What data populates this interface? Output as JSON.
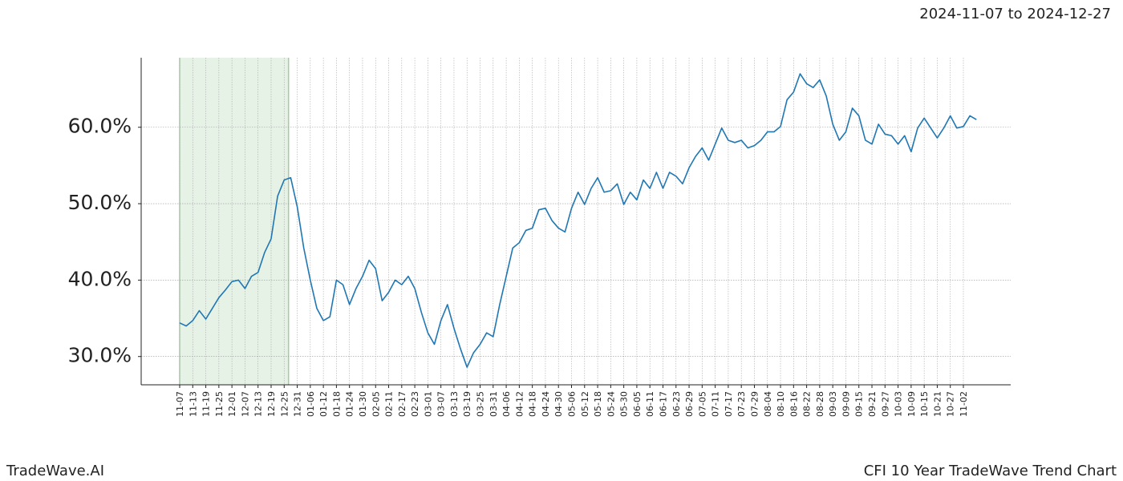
{
  "chart_data": {
    "type": "line",
    "subtitle": "2024-11-07 to 2024-12-27",
    "footer_left": "TradeWave.AI",
    "footer_right": "CFI 10 Year TradeWave Trend Chart",
    "highlight": [
      "2024-11-07",
      "2024-12-27"
    ],
    "highlight_color": "#e6f2e6",
    "grid": true,
    "categories": [
      "11-07",
      null,
      "11-13",
      null,
      "11-19",
      null,
      "11-25",
      null,
      "12-01",
      null,
      "12-07",
      null,
      "12-13",
      null,
      "12-19",
      null,
      "12-25",
      null,
      "12-31",
      null,
      "01-06",
      null,
      "01-12",
      null,
      "01-18",
      null,
      "01-24",
      null,
      "01-30",
      null,
      "02-05",
      null,
      "02-11",
      null,
      "02-17",
      null,
      "02-23",
      null,
      "03-01",
      null,
      "03-07",
      null,
      "03-13",
      null,
      "03-19",
      null,
      "03-25",
      null,
      "03-31",
      null,
      "04-06",
      null,
      "04-12",
      null,
      "04-18",
      null,
      "04-24",
      null,
      "04-30",
      null,
      "05-06",
      null,
      "05-12",
      null,
      "05-18",
      null,
      "05-24",
      null,
      "05-30",
      null,
      "06-05",
      null,
      "06-11",
      null,
      "06-17",
      null,
      "06-23",
      null,
      "06-29",
      null,
      "07-05",
      null,
      "07-11",
      null,
      "07-17",
      null,
      "07-23",
      null,
      "07-29",
      null,
      "08-04",
      null,
      "08-10",
      null,
      "08-16",
      null,
      "08-22",
      null,
      "08-28",
      null,
      "09-03",
      null,
      "09-09",
      null,
      "09-15",
      null,
      "09-21",
      null,
      "09-27",
      null,
      "10-03",
      null,
      "10-09",
      null,
      "10-15",
      null,
      "10-21",
      null,
      "10-27",
      null,
      "11-02",
      null,
      null
    ],
    "series": [
      {
        "name": "CFI",
        "color": "#1f77b4",
        "values": [
          34.4,
          34.0,
          34.7,
          36.0,
          34.9,
          36.3,
          37.7,
          38.7,
          39.8,
          40.0,
          38.9,
          40.5,
          41.0,
          43.6,
          45.4,
          51.0,
          53.1,
          53.4,
          49.6,
          44.2,
          40.0,
          36.3,
          34.7,
          35.2,
          40.0,
          39.4,
          36.8,
          38.9,
          40.5,
          42.6,
          41.5,
          37.3,
          38.4,
          40.0,
          39.4,
          40.5,
          38.9,
          35.8,
          33.1,
          31.6,
          34.7,
          36.8,
          33.7,
          31.0,
          28.6,
          30.5,
          31.6,
          33.1,
          32.6,
          36.8,
          40.5,
          44.2,
          44.9,
          46.5,
          46.8,
          49.2,
          49.4,
          47.8,
          46.8,
          46.3,
          49.4,
          51.5,
          49.9,
          52.0,
          53.4,
          51.5,
          51.7,
          52.6,
          49.9,
          51.5,
          50.5,
          53.1,
          52.0,
          54.1,
          52.0,
          54.1,
          53.6,
          52.6,
          54.7,
          56.2,
          57.3,
          55.7,
          57.8,
          59.9,
          58.3,
          58.0,
          58.3,
          57.3,
          57.6,
          58.3,
          59.4,
          59.4,
          60.1,
          63.6,
          64.6,
          67.0,
          65.7,
          65.2,
          66.2,
          64.1,
          60.4,
          58.3,
          59.4,
          62.5,
          61.5,
          58.3,
          57.8,
          60.4,
          59.1,
          58.9,
          57.8,
          58.9,
          56.8,
          59.9,
          61.2,
          59.9,
          58.6,
          59.9,
          61.5,
          59.9,
          60.1,
          61.5,
          61.0
        ]
      }
    ],
    "ylim": [
      26.3,
      69.1
    ],
    "yticks": [
      {
        "value": 30,
        "label": "30.0%"
      },
      {
        "value": 40,
        "label": "40.0%"
      },
      {
        "value": 50,
        "label": "50.0%"
      },
      {
        "value": 60,
        "label": "60.0%"
      }
    ]
  }
}
